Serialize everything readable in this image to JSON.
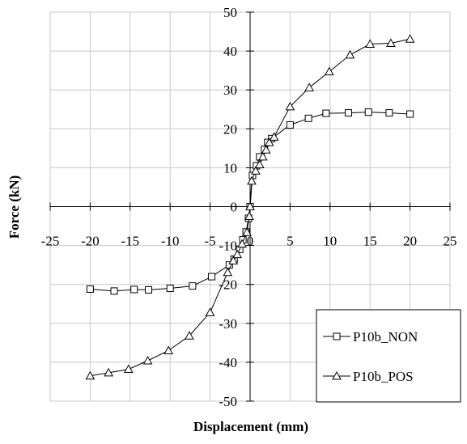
{
  "chart_data": {
    "type": "line",
    "title": "",
    "xlabel": "Displacement (mm)",
    "ylabel": "Force (kN)",
    "xlim": [
      -25,
      25
    ],
    "ylim": [
      -50,
      50
    ],
    "xticks": [
      -25,
      -20,
      -15,
      -10,
      -5,
      0,
      5,
      10,
      15,
      20,
      25
    ],
    "yticks": [
      -50,
      -40,
      -30,
      -20,
      -10,
      0,
      10,
      20,
      30,
      40,
      50
    ],
    "grid": true,
    "legend_position": "bottom-right",
    "series": [
      {
        "name": "P10b_NON",
        "marker": "square",
        "color": "#000000",
        "points": [
          [
            -20,
            -21.2
          ],
          [
            -17,
            -21.7
          ],
          [
            -14.5,
            -21.3
          ],
          [
            -12.7,
            -21.4
          ],
          [
            -10,
            -21.0
          ],
          [
            -7.2,
            -20.4
          ],
          [
            -4.8,
            -18.0
          ],
          [
            -2.6,
            -15.0
          ],
          [
            -2.0,
            -13.5
          ],
          [
            -1.3,
            -11.0
          ],
          [
            -0.9,
            -8.5
          ],
          [
            -0.5,
            -6.5
          ],
          [
            -0.2,
            -3.0
          ],
          [
            0,
            0
          ],
          [
            0.3,
            8.0
          ],
          [
            0.8,
            10.5
          ],
          [
            1.2,
            12.8
          ],
          [
            1.8,
            14.7
          ],
          [
            2.2,
            16.5
          ],
          [
            2.7,
            17.5
          ],
          [
            5.0,
            21.0
          ],
          [
            7.3,
            22.7
          ],
          [
            9.5,
            24.0
          ],
          [
            12.3,
            24.1
          ],
          [
            14.8,
            24.3
          ],
          [
            17.4,
            24.1
          ],
          [
            20,
            23.8
          ]
        ]
      },
      {
        "name": "P10b_POS",
        "marker": "triangle",
        "color": "#000000",
        "points": [
          [
            -20,
            -43.5
          ],
          [
            -17.7,
            -42.7
          ],
          [
            -15.2,
            -41.8
          ],
          [
            -12.8,
            -39.6
          ],
          [
            -10.2,
            -37.0
          ],
          [
            -7.6,
            -33.2
          ],
          [
            -5.0,
            -27.2
          ],
          [
            -2.8,
            -16.9
          ],
          [
            -2.1,
            -13.9
          ],
          [
            -1.6,
            -12.3
          ],
          [
            -1.0,
            -9.6
          ],
          [
            -0.4,
            -6.6
          ],
          [
            -0.1,
            -2.5
          ],
          [
            0,
            0
          ],
          [
            0.2,
            6.6
          ],
          [
            0.7,
            9.2
          ],
          [
            1.2,
            10.8
          ],
          [
            1.6,
            12.8
          ],
          [
            2.0,
            14.6
          ],
          [
            2.4,
            16.5
          ],
          [
            3.0,
            17.9
          ],
          [
            5.0,
            25.7
          ],
          [
            7.4,
            30.6
          ],
          [
            9.9,
            34.7
          ],
          [
            12.5,
            39.0
          ],
          [
            15.0,
            41.8
          ],
          [
            17.6,
            42.0
          ],
          [
            20,
            43.1
          ]
        ]
      }
    ]
  }
}
